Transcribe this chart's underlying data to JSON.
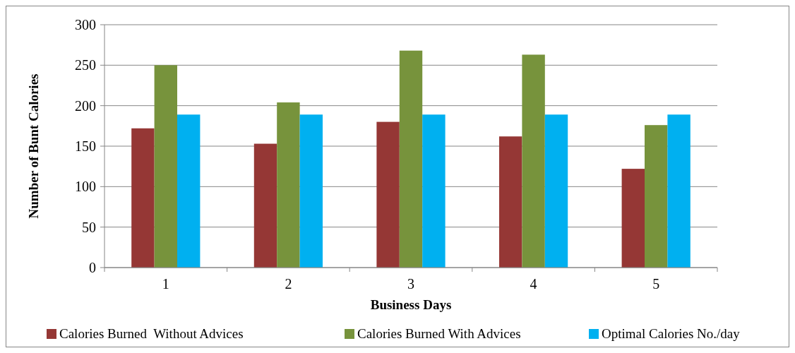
{
  "chart_data": {
    "type": "bar",
    "xlabel": "Business Days",
    "ylabel": "Number of Bunt Calories",
    "categories": [
      "1",
      "2",
      "3",
      "4",
      "5"
    ],
    "series": [
      {
        "name": "Calories Burned  Without Advices",
        "color": "#953735",
        "values": [
          172,
          153,
          180,
          162,
          122
        ]
      },
      {
        "name": "Calories Burned With Advices",
        "color": "#77933c",
        "values": [
          250,
          204,
          268,
          263,
          176
        ]
      },
      {
        "name": "Optimal Calories No./day",
        "color": "#00b0f0",
        "values": [
          189,
          189,
          189,
          189,
          189
        ]
      }
    ],
    "ylim": [
      0,
      300
    ],
    "yticks": [
      0,
      50,
      100,
      150,
      200,
      250,
      300
    ],
    "grid": "y",
    "legend": "bottom"
  }
}
